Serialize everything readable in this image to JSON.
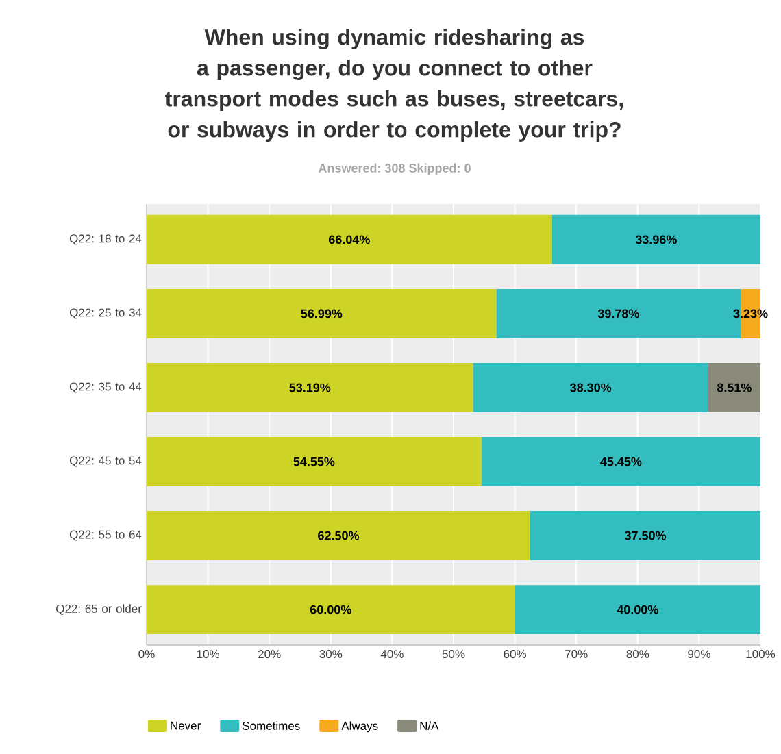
{
  "chart_data": {
    "type": "bar",
    "orientation": "horizontal",
    "stacked": true,
    "title": "When using dynamic ridesharing as a passenger, do you connect to other transport modes such as buses, streetcars, or subways in order to complete your trip?",
    "subtitle": "Answered: 308    Skipped: 0",
    "categories": [
      "Q22: 18 to 24",
      "Q22: 25 to 34",
      "Q22: 35 to 44",
      "Q22: 45 to 54",
      "Q22: 55 to 64",
      "Q22: 65 or older"
    ],
    "series": [
      {
        "name": "Never",
        "color": "#cdd425",
        "values": [
          66.04,
          56.99,
          53.19,
          54.55,
          62.5,
          60.0
        ],
        "value_labels": [
          "66.04%",
          "56.99%",
          "53.19%",
          "54.55%",
          "62.50%",
          "60.00%"
        ]
      },
      {
        "name": "Sometimes",
        "color": "#33bdbf",
        "values": [
          33.96,
          39.78,
          38.3,
          45.45,
          37.5,
          40.0
        ],
        "value_labels": [
          "33.96%",
          "39.78%",
          "38.30%",
          "45.45%",
          "37.50%",
          "40.00%"
        ]
      },
      {
        "name": "Always",
        "color": "#f6ab1f",
        "values": [
          null,
          3.23,
          null,
          null,
          null,
          null
        ],
        "value_labels": [
          null,
          "3.23%",
          null,
          null,
          null,
          null
        ]
      },
      {
        "name": "N/A",
        "color": "#8b8b7b",
        "values": [
          null,
          null,
          8.51,
          null,
          null,
          null
        ],
        "value_labels": [
          null,
          null,
          "8.51%",
          null,
          null,
          null
        ]
      }
    ],
    "xlim": [
      0,
      100
    ],
    "xticks": [
      {
        "value": 0,
        "label": "0%"
      },
      {
        "value": 10,
        "label": "10%"
      },
      {
        "value": 20,
        "label": "20%"
      },
      {
        "value": 30,
        "label": "30%"
      },
      {
        "value": 40,
        "label": "40%"
      },
      {
        "value": 50,
        "label": "50%"
      },
      {
        "value": 60,
        "label": "60%"
      },
      {
        "value": 70,
        "label": "70%"
      },
      {
        "value": 80,
        "label": "80%"
      },
      {
        "value": 90,
        "label": "90%"
      },
      {
        "value": 100,
        "label": "100%"
      }
    ],
    "grid": "x",
    "legend": "bottom"
  }
}
